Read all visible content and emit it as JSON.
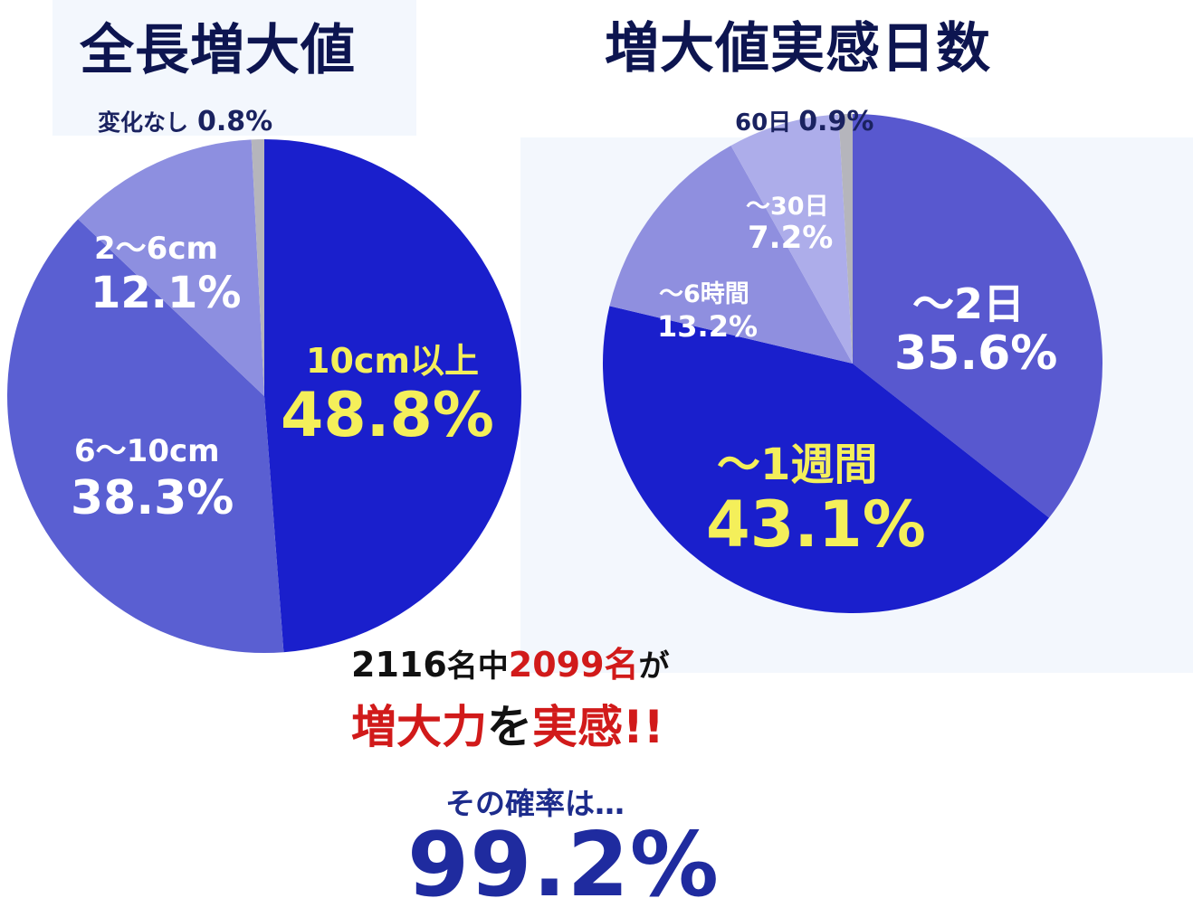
{
  "colors": {
    "title": "#0d1550",
    "label_white": "#ffffff",
    "label_yellow": "#f4ef5a",
    "label_navy": "#1a2260",
    "summary_black": "#111111",
    "summary_red": "#d11a1a",
    "summary_blue": "#1f2b9f"
  },
  "chart_data": [
    {
      "type": "pie",
      "title": "全長増大値",
      "slices": [
        {
          "name": "10cm以上",
          "value": 48.8,
          "display": "48.8%",
          "color": "#1a1fcc",
          "label_color": "#f4ef5a"
        },
        {
          "name": "6〜10cm",
          "value": 38.3,
          "display": "38.3%",
          "color": "#5a5fd2",
          "label_color": "#ffffff"
        },
        {
          "name": "2〜6cm",
          "value": 12.1,
          "display": "12.1%",
          "color": "#8d8fe0",
          "label_color": "#ffffff"
        },
        {
          "name": "変化なし",
          "value": 0.8,
          "display": "0.8%",
          "color": "#b5b5bc",
          "label_color": "#1a2260"
        }
      ]
    },
    {
      "type": "pie",
      "title": "増大値実感日数",
      "slices": [
        {
          "name": "〜2日",
          "value": 35.6,
          "display": "35.6%",
          "color": "#5858cf",
          "label_color": "#ffffff"
        },
        {
          "name": "〜1週間",
          "value": 43.1,
          "display": "43.1%",
          "color": "#1a1fcc",
          "label_color": "#f4ef5a"
        },
        {
          "name": "〜6時間",
          "value": 13.2,
          "display": "13.2%",
          "color": "#8f8fdf",
          "label_color": "#ffffff"
        },
        {
          "name": "〜30日",
          "value": 7.2,
          "display": "7.2%",
          "color": "#adadea",
          "label_color": "#ffffff"
        },
        {
          "name": "60日",
          "value": 0.9,
          "display": "0.9%",
          "color": "#b5b5bc",
          "label_color": "#1a2260"
        }
      ]
    }
  ],
  "summary": {
    "total": "2116",
    "name_unit_1": "名中",
    "count": "2099名",
    "particle_ga": "が",
    "zoudairyoku": "増大力",
    "wo": "を",
    "jikkan": "実感!!",
    "probability_label": "その確率は…",
    "probability": "99.2%"
  }
}
